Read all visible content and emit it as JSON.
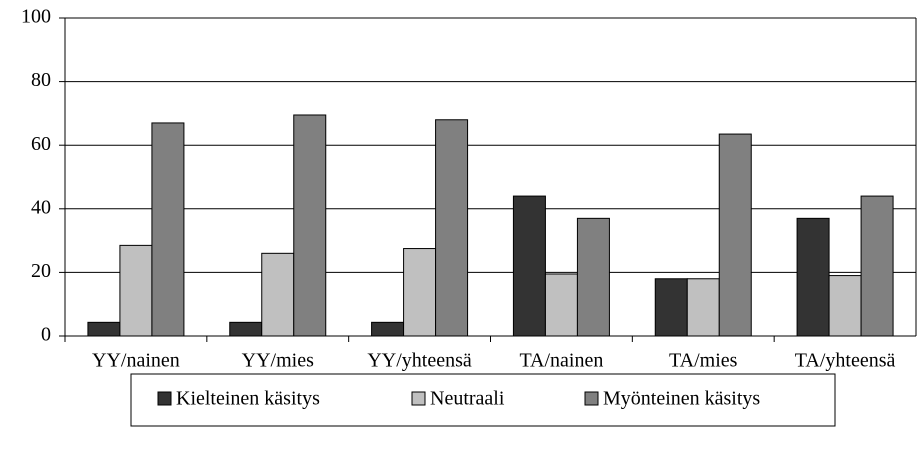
{
  "chart_data": {
    "type": "bar",
    "categories": [
      "YY/nainen",
      "YY/mies",
      "YY/yhteensä",
      "TA/nainen",
      "TA/mies",
      "TA/yhteensä"
    ],
    "series": [
      {
        "name": "Kielteinen käsitys",
        "color": "#333333",
        "values": [
          4.3,
          4.3,
          4.3,
          44,
          18,
          37
        ]
      },
      {
        "name": "Neutraali",
        "color": "#c0c0c0",
        "values": [
          28.5,
          26,
          27.5,
          19.5,
          18,
          19
        ]
      },
      {
        "name": "Myönteinen käsitys",
        "color": "#808080",
        "values": [
          67,
          69.5,
          68,
          37,
          63.5,
          44
        ]
      }
    ],
    "ylim": [
      0,
      100
    ],
    "yticks": [
      0,
      20,
      40,
      60,
      80,
      100
    ],
    "grid": true,
    "legend": "bottom"
  }
}
